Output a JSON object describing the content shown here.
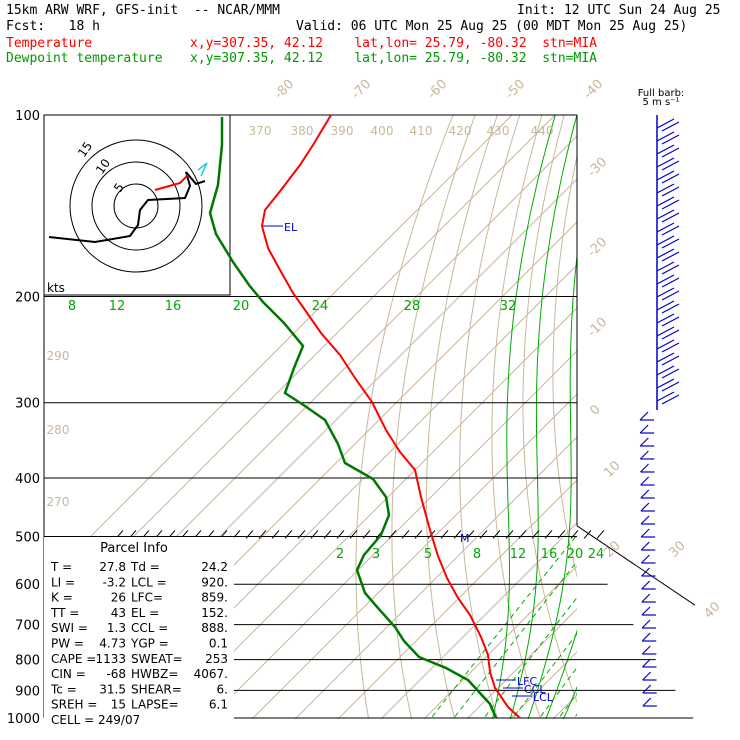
{
  "header": {
    "model": "15km ARW WRF, GFS-init  -- NCAR/MMM",
    "init": "Init: 12 UTC Sun 24 Aug 25",
    "fcst": "Fcst:   18 h",
    "valid": "Valid: 06 UTC Mon 25 Aug 25 (00 MDT Mon 25 Aug 25)",
    "temp_label": "Temperature",
    "temp_info": "x,y=307.35, 42.12    lat,lon= 25.79, -80.32  stn=MIA",
    "dew_label": "Dewpoint temperature",
    "dew_info": "x,y=307.35, 42.12    lat,lon= 25.79, -80.32  stn=MIA"
  },
  "colors": {
    "temperature": "#ff0000",
    "dewpoint": "#007700",
    "mixing_ratio": "#00aa00",
    "isotherm": "#c8b89a",
    "barb": "#0000cc",
    "hodograph": "#000000"
  },
  "chart_data": {
    "type": "line",
    "ylim": [
      1000,
      100
    ],
    "pressure_ticks": [
      "100",
      "200",
      "300",
      "400",
      "500",
      "600",
      "700",
      "800",
      "900",
      "1000"
    ],
    "series": [
      {
        "name": "Temperature",
        "values": []
      },
      {
        "name": "Dewpoint temperature",
        "values": []
      }
    ],
    "isotherm_labels": [
      "-80",
      "-70",
      "-60",
      "-50",
      "-40",
      "-30",
      "-20",
      "-10",
      "0",
      "10",
      "20",
      "30",
      "40"
    ],
    "theta_labels": [
      "370",
      "380",
      "390",
      "400",
      "410",
      "420",
      "430",
      "440",
      "290",
      "280",
      "270"
    ],
    "mixing_ratio_labels_upper": [
      "8",
      "12",
      "16",
      "20",
      "24",
      "28",
      "32"
    ],
    "mixing_ratio_labels_lower": [
      "2",
      "3",
      "5",
      "8",
      "12",
      "16",
      "20",
      "24"
    ],
    "level_markers": [
      "EL",
      "M",
      "LFC",
      "CCL",
      "LCL"
    ],
    "hodograph": {
      "rings": [
        "5",
        "10",
        "15"
      ],
      "units": "kts"
    },
    "barbs_title": "Full barb:",
    "barbs_unit": "5 m s⁻¹"
  },
  "parcel_info": {
    "title": "Parcel Info",
    "rows": [
      [
        "T  =",
        "27.8",
        "Td =",
        "24.2"
      ],
      [
        "LI =",
        "-3.2",
        "LCL =",
        "920."
      ],
      [
        "K  =",
        "26",
        "LFC=",
        "859."
      ],
      [
        "TT =",
        "43",
        "EL =",
        "152."
      ],
      [
        "SWI =",
        "1.3",
        "CCL =",
        "888."
      ],
      [
        "PW =",
        "4.73",
        "YGP =",
        "0.1"
      ],
      [
        "CAPE =",
        "1133",
        "SWEAT=",
        "253"
      ],
      [
        "CIN =",
        "-68",
        "HWBZ=",
        "4067."
      ],
      [
        "Tc =",
        "31.5",
        "SHEAR=",
        "6."
      ],
      [
        "SREH =",
        "15",
        "LAPSE=",
        "6.1"
      ]
    ],
    "cell": "CELL = 249/07"
  }
}
